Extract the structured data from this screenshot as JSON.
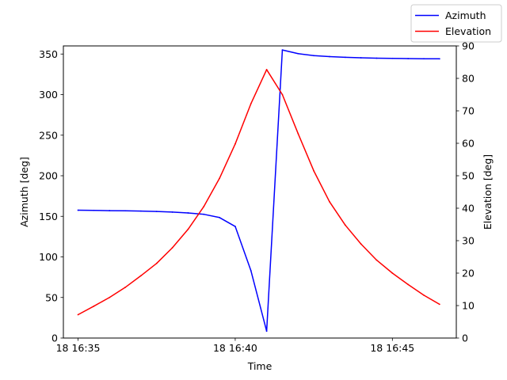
{
  "chart_data": {
    "type": "line",
    "xlabel": "Time",
    "ylabel_left": "Azimuth [deg]",
    "ylabel_right": "Elevation [deg]",
    "xlim": [
      "2024-01-18T16:34:32",
      "2024-01-18T16:47:02"
    ],
    "ylim_left": [
      0,
      360
    ],
    "ylim_right": [
      0,
      90
    ],
    "x_ticks": [
      {
        "value": "2024-01-18T16:35:00",
        "label": "18 16:35"
      },
      {
        "value": "2024-01-18T16:40:00",
        "label": "18 16:40"
      },
      {
        "value": "2024-01-18T16:45:00",
        "label": "18 16:45"
      }
    ],
    "y_ticks_left": [
      0,
      50,
      100,
      150,
      200,
      250,
      300,
      350
    ],
    "y_ticks_right": [
      0,
      10,
      20,
      30,
      40,
      50,
      60,
      70,
      80,
      90
    ],
    "grid": false,
    "legend_position": "top-right",
    "x": [
      "2024-01-18T16:35:00",
      "2024-01-18T16:35:30",
      "2024-01-18T16:36:00",
      "2024-01-18T16:36:30",
      "2024-01-18T16:37:00",
      "2024-01-18T16:37:30",
      "2024-01-18T16:38:00",
      "2024-01-18T16:38:30",
      "2024-01-18T16:39:00",
      "2024-01-18T16:39:30",
      "2024-01-18T16:40:00",
      "2024-01-18T16:40:30",
      "2024-01-18T16:41:00",
      "2024-01-18T16:41:30",
      "2024-01-18T16:42:00",
      "2024-01-18T16:42:30",
      "2024-01-18T16:43:00",
      "2024-01-18T16:43:30",
      "2024-01-18T16:44:00",
      "2024-01-18T16:44:30",
      "2024-01-18T16:45:00",
      "2024-01-18T16:45:30",
      "2024-01-18T16:46:00",
      "2024-01-18T16:46:30"
    ],
    "series": [
      {
        "name": "Azimuth",
        "axis": "left",
        "color": "#0000ff",
        "values": [
          157.5,
          157.3,
          157.0,
          156.8,
          156.5,
          156.0,
          155.2,
          154.2,
          152.5,
          148.5,
          137.5,
          83.0,
          8.5,
          355.0,
          350.5,
          348.0,
          346.8,
          346.0,
          345.4,
          344.9,
          344.6,
          344.4,
          344.2,
          344.1
        ]
      },
      {
        "name": "Elevation",
        "axis": "right",
        "color": "#ff0000",
        "values": [
          7.2,
          9.8,
          12.5,
          15.6,
          19.2,
          23.0,
          27.8,
          33.5,
          40.5,
          49.2,
          59.8,
          72.2,
          82.7,
          75.0,
          63.0,
          51.5,
          42.0,
          34.8,
          29.0,
          24.0,
          20.0,
          16.5,
          13.2,
          10.4
        ]
      }
    ]
  }
}
